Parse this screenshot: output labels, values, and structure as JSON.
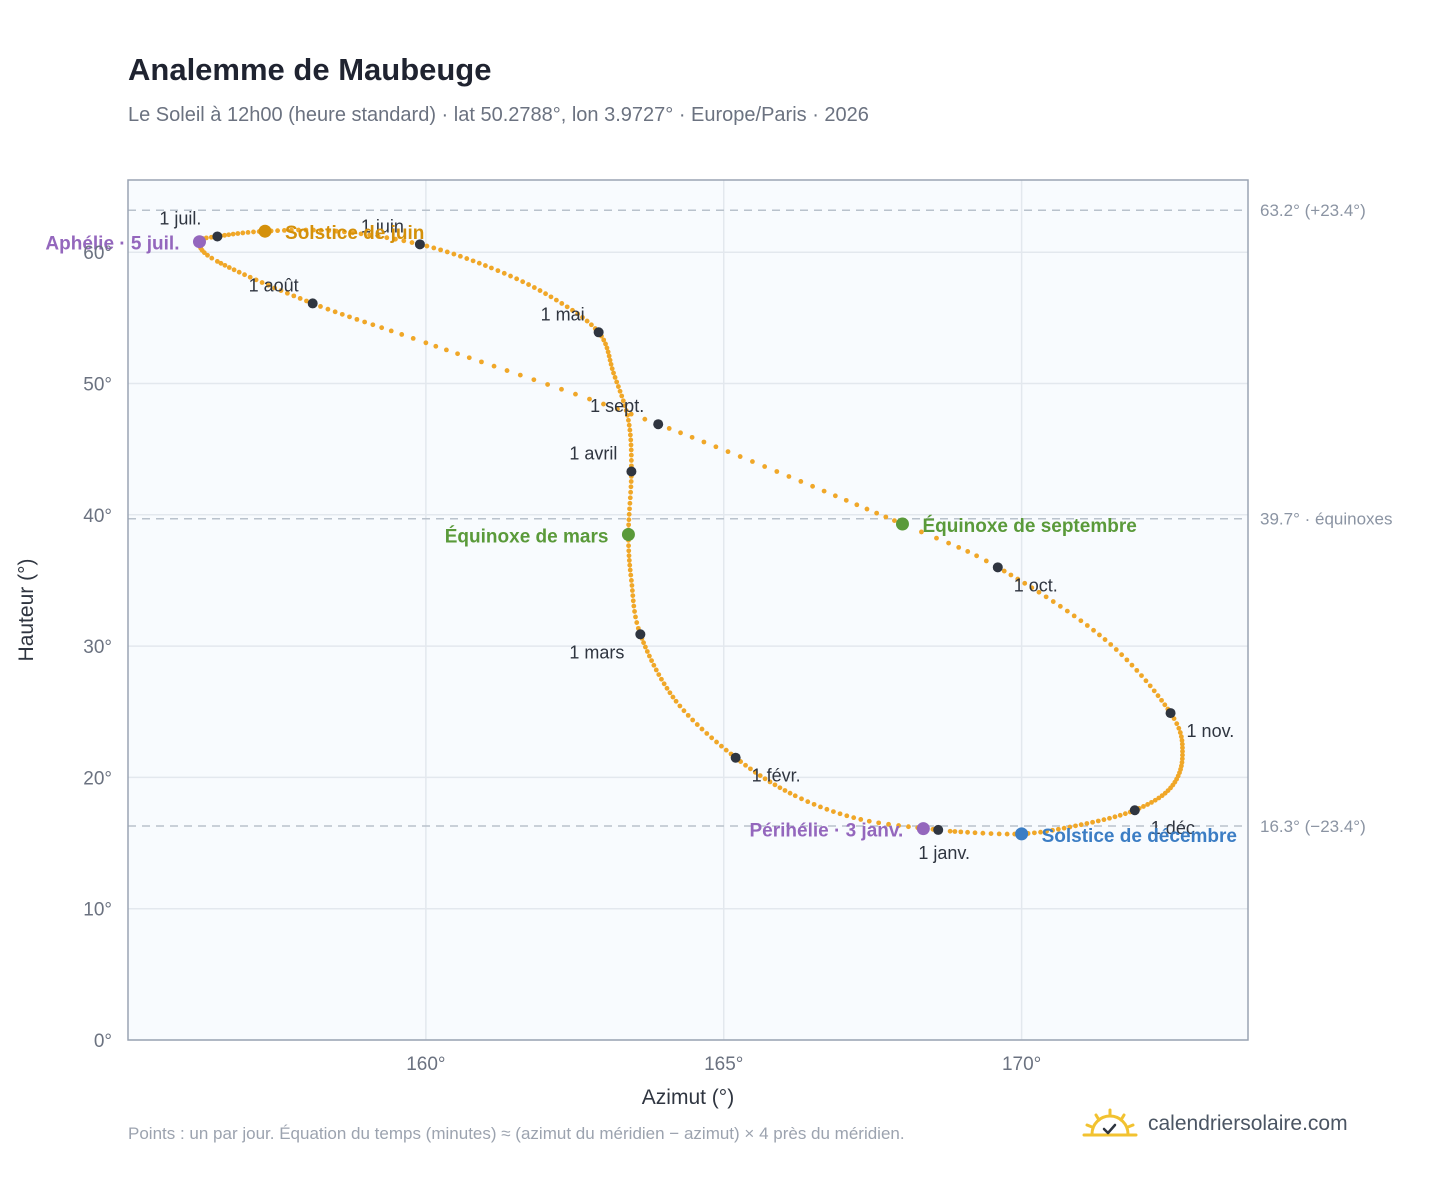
{
  "header": {
    "title": "Analemme de Maubeuge",
    "subtitle": "Le Soleil à 12h00 (heure standard) · lat 50.2788°, lon 3.9727° · Europe/Paris · 2026"
  },
  "footer": {
    "note": "Points : un par jour. Équation du temps (minutes) ≈ (azimut du méridien − azimut) × 4 près du méridien.",
    "brand": "calendriersolaire.com",
    "brand_icon": "sun-check-icon"
  },
  "colors": {
    "curve": "#f0a728",
    "month": "#2f3540",
    "solstice_june": "#d4900a",
    "solstice_dec": "#3b7dc4",
    "equinox": "#5a9a3a",
    "apsis": "#9467bd",
    "refline": "#b9c2cc",
    "plot_bg": "#f8fbfe",
    "frame": "#9aa4b3",
    "grid": "#e3e8ee"
  },
  "chart_data": {
    "type": "scatter",
    "title": "Analemme de Maubeuge",
    "xlabel": "Azimut (°)",
    "ylabel": "Hauteur (°)",
    "xlim": [
      155.0,
      173.8
    ],
    "ylim": [
      0,
      65.5
    ],
    "x_ticks": [
      160,
      165,
      170
    ],
    "x_tick_labels": [
      "160°",
      "165°",
      "170°"
    ],
    "y_ticks": [
      0,
      10,
      20,
      30,
      40,
      50,
      60
    ],
    "y_tick_labels": [
      "0°",
      "10°",
      "20°",
      "30°",
      "40°",
      "50°",
      "60°"
    ],
    "grid": true,
    "reference_lines": [
      {
        "y": 63.2,
        "label": "63.2° (+23.4°)"
      },
      {
        "y": 39.7,
        "label": "39.7° · équinoxes"
      },
      {
        "y": 16.3,
        "label": "16.3° (−23.4°)"
      }
    ],
    "daily_points_series": {
      "name": "",
      "anchors_by_day_of_year": [
        {
          "day": 1,
          "x": 168.6,
          "y": 16.0
        },
        {
          "day": 10,
          "x": 167.3,
          "y": 16.8
        },
        {
          "day": 20,
          "x": 166.2,
          "y": 18.6
        },
        {
          "day": 32,
          "x": 165.2,
          "y": 21.5
        },
        {
          "day": 45,
          "x": 164.2,
          "y": 25.8
        },
        {
          "day": 60,
          "x": 163.6,
          "y": 30.9
        },
        {
          "day": 70,
          "x": 163.45,
          "y": 35.0
        },
        {
          "day": 79,
          "x": 163.4,
          "y": 38.5
        },
        {
          "day": 91,
          "x": 163.45,
          "y": 43.3
        },
        {
          "day": 101,
          "x": 163.4,
          "y": 47.2
        },
        {
          "day": 111,
          "x": 163.15,
          "y": 50.8
        },
        {
          "day": 121,
          "x": 162.9,
          "y": 53.9
        },
        {
          "day": 131,
          "x": 162.1,
          "y": 56.6
        },
        {
          "day": 141,
          "x": 161.1,
          "y": 58.8
        },
        {
          "day": 152,
          "x": 159.9,
          "y": 60.6
        },
        {
          "day": 162,
          "x": 158.5,
          "y": 61.6
        },
        {
          "day": 172,
          "x": 157.3,
          "y": 61.6
        },
        {
          "day": 182,
          "x": 156.5,
          "y": 61.2
        },
        {
          "day": 187,
          "x": 156.2,
          "y": 60.8
        },
        {
          "day": 196,
          "x": 156.5,
          "y": 59.3
        },
        {
          "day": 213,
          "x": 158.1,
          "y": 56.1
        },
        {
          "day": 226,
          "x": 160.0,
          "y": 53.1
        },
        {
          "day": 244,
          "x": 163.9,
          "y": 46.9
        },
        {
          "day": 266,
          "x": 168.0,
          "y": 39.3
        },
        {
          "day": 274,
          "x": 169.6,
          "y": 36.0
        },
        {
          "day": 290,
          "x": 171.4,
          "y": 30.5
        },
        {
          "day": 305,
          "x": 172.5,
          "y": 24.9
        },
        {
          "day": 315,
          "x": 172.7,
          "y": 21.7
        },
        {
          "day": 325,
          "x": 172.5,
          "y": 19.2
        },
        {
          "day": 335,
          "x": 171.9,
          "y": 17.5
        },
        {
          "day": 345,
          "x": 171.0,
          "y": 16.4
        },
        {
          "day": 355,
          "x": 170.0,
          "y": 15.7
        },
        {
          "day": 365,
          "x": 168.8,
          "y": 15.9
        },
        {
          "day": 366,
          "x": 168.6,
          "y": 16.0
        }
      ]
    },
    "month_markers": [
      {
        "label": "1 janv.",
        "x": 168.6,
        "y": 16.0,
        "lpos": "below"
      },
      {
        "label": "1 févr.",
        "x": 165.2,
        "y": 21.5,
        "lpos": "right-below"
      },
      {
        "label": "1 mars",
        "x": 163.6,
        "y": 30.9,
        "lpos": "left-below"
      },
      {
        "label": "1 avril",
        "x": 163.45,
        "y": 43.3,
        "lpos": "left-above"
      },
      {
        "label": "1 mai",
        "x": 162.9,
        "y": 53.9,
        "lpos": "left-above"
      },
      {
        "label": "1 juin",
        "x": 159.9,
        "y": 60.6,
        "lpos": "above-left"
      },
      {
        "label": "1 juil.",
        "x": 156.5,
        "y": 61.2,
        "lpos": "above-left"
      },
      {
        "label": "1 août",
        "x": 158.1,
        "y": 56.1,
        "lpos": "left-above"
      },
      {
        "label": "1 sept.",
        "x": 163.9,
        "y": 46.9,
        "lpos": "left-above"
      },
      {
        "label": "1 oct.",
        "x": 169.6,
        "y": 36.0,
        "lpos": "right-below"
      },
      {
        "label": "1 nov.",
        "x": 172.5,
        "y": 24.9,
        "lpos": "right-below"
      },
      {
        "label": "1 déc.",
        "x": 171.9,
        "y": 17.5,
        "lpos": "right-below"
      }
    ],
    "special_points": [
      {
        "label": "Solstice de juin",
        "x": 157.3,
        "y": 61.6,
        "color": "#d4900a",
        "lpos": "right"
      },
      {
        "label": "Aphélie · 5 juil.",
        "x": 156.2,
        "y": 60.8,
        "color": "#9467bd",
        "lpos": "left"
      },
      {
        "label": "Équinoxe de mars",
        "x": 163.4,
        "y": 38.5,
        "color": "#5a9a3a",
        "lpos": "left"
      },
      {
        "label": "Équinoxe de septembre",
        "x": 168.0,
        "y": 39.3,
        "color": "#5a9a3a",
        "lpos": "right"
      },
      {
        "label": "Périhélie · 3 janv.",
        "x": 168.35,
        "y": 16.1,
        "color": "#9467bd",
        "lpos": "left"
      },
      {
        "label": "Solstice de décembre",
        "x": 170.0,
        "y": 15.7,
        "color": "#3b7dc4",
        "lpos": "right"
      }
    ]
  }
}
